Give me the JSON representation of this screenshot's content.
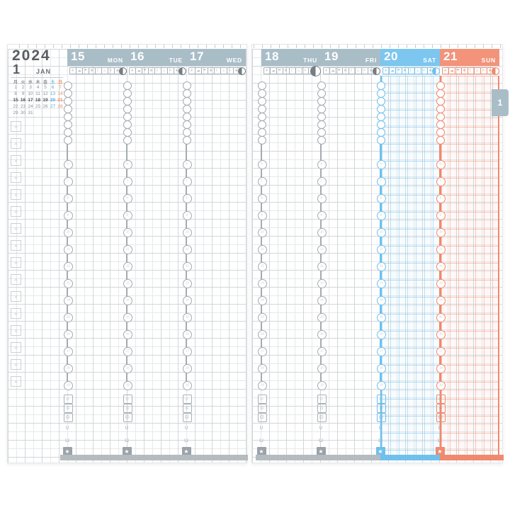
{
  "title": {
    "year": "2024",
    "month_number": "1",
    "month_abbr": "JAN",
    "tab_label": "1"
  },
  "mini_calendar": {
    "weekday_headers": [
      "月",
      "火",
      "水",
      "木",
      "金",
      "土",
      "日"
    ],
    "weeks": [
      [
        "1",
        "2",
        "3",
        "4",
        "5",
        "6",
        "7"
      ],
      [
        "8",
        "9",
        "10",
        "11",
        "12",
        "13",
        "14"
      ],
      [
        "15",
        "16",
        "17",
        "18",
        "19",
        "20",
        "21"
      ],
      [
        "22",
        "23",
        "24",
        "25",
        "26",
        "27",
        "28"
      ],
      [
        "29",
        "30",
        "31",
        "",
        "",
        "",
        ""
      ]
    ],
    "current_week_row": 2
  },
  "week_days": [
    {
      "date": "15",
      "abbr": "MON",
      "kind": "weekday",
      "page": "left"
    },
    {
      "date": "16",
      "abbr": "TUE",
      "kind": "weekday",
      "page": "left"
    },
    {
      "date": "17",
      "abbr": "WED",
      "kind": "weekday",
      "page": "left"
    },
    {
      "date": "18",
      "abbr": "THU",
      "kind": "weekday",
      "page": "right",
      "moon_large": true
    },
    {
      "date": "19",
      "abbr": "FRI",
      "kind": "weekday",
      "page": "right"
    },
    {
      "date": "20",
      "abbr": "SAT",
      "kind": "saturday",
      "page": "right"
    },
    {
      "date": "21",
      "abbr": "SUN",
      "kind": "sunday",
      "page": "right"
    }
  ],
  "weather_icons": [
    {
      "name": "sun-icon",
      "glyph": "☀"
    },
    {
      "name": "cloud-icon",
      "glyph": "☁"
    },
    {
      "name": "umbrella-icon",
      "glyph": "☂"
    },
    {
      "name": "snow-icon",
      "glyph": "❄"
    },
    {
      "name": "moon-icon",
      "glyph": "☾"
    },
    {
      "name": "hotspring-icon",
      "glyph": "♨"
    },
    {
      "name": "wind-icon",
      "glyph": "≈"
    },
    {
      "name": "star-icon",
      "glyph": "★"
    }
  ],
  "time_chain": {
    "compressed_hours": [
      "0",
      "1",
      "2",
      "3",
      "4",
      "5",
      "6",
      "7"
    ],
    "hour_marks": [
      "6",
      "7",
      "8",
      "9",
      "10",
      "11",
      "12",
      "13",
      "14",
      "15",
      "16",
      "17",
      "18",
      "19"
    ]
  },
  "footer_icons": [
    {
      "name": "mood-happy-icon",
      "glyph": "☺"
    },
    {
      "name": "mood-neutral-icon",
      "glyph": "⊙"
    },
    {
      "name": "mood-sad-icon",
      "glyph": "☹"
    },
    {
      "name": "meal-icon",
      "glyph": "∪"
    },
    {
      "name": "drink-icon",
      "glyph": "⊔"
    },
    {
      "name": "star-icon",
      "glyph": "★"
    }
  ],
  "colors": {
    "header_weekday": "#a9bdc7",
    "header_saturday": "#7cc6ef",
    "header_sunday": "#f2937a",
    "accent_saturday": "#6fc0ec",
    "accent_sunday": "#ef8a6e",
    "saturday_text": "#58aadd",
    "sunday_text": "#ee8a62",
    "calendar_text": "#8a9096",
    "calendar_current_week_text": "#4e545a",
    "grid_minor": "#e6e8ea",
    "grid_major": "#d2d6d9",
    "chain_gray": "#a4abb1",
    "icon_gray": "#a8b2b8",
    "bottom_bar_gray": "#b5bbbf",
    "tab_bg": "#a9bdc7",
    "tick": "#c6cbcf",
    "title_text": "#575d63"
  }
}
